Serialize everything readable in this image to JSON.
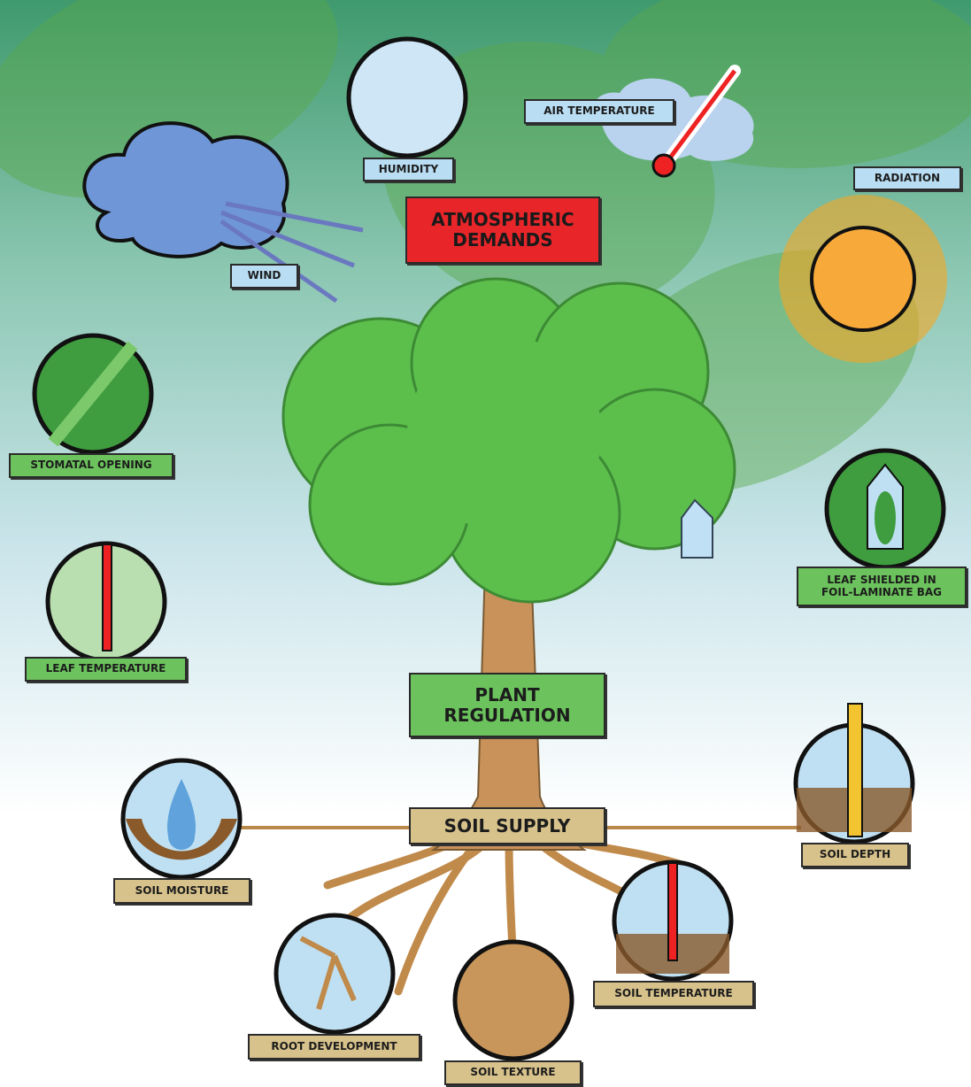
{
  "headings": {
    "atmospheric_demands": "ATMOSPHERIC\nDEMANDS",
    "plant_regulation": "PLANT\nREGULATION",
    "soil_supply": "SOIL SUPPLY"
  },
  "atmospheric": {
    "humidity": "HUMIDITY",
    "air_temperature": "AIR TEMPERATURE",
    "radiation": "RADIATION",
    "wind": "WIND"
  },
  "plant": {
    "stomatal_opening": "STOMATAL OPENING",
    "leaf_temperature": "LEAF TEMPERATURE",
    "leaf_shielded": "LEAF SHIELDED IN\nFOIL-LAMINATE BAG"
  },
  "soil": {
    "soil_moisture": "SOIL MOISTURE",
    "soil_depth": "SOIL DEPTH",
    "soil_temperature": "SOIL TEMPERATURE",
    "root_development": "ROOT DEVELOPMENT",
    "soil_texture": "SOIL TEXTURE"
  }
}
